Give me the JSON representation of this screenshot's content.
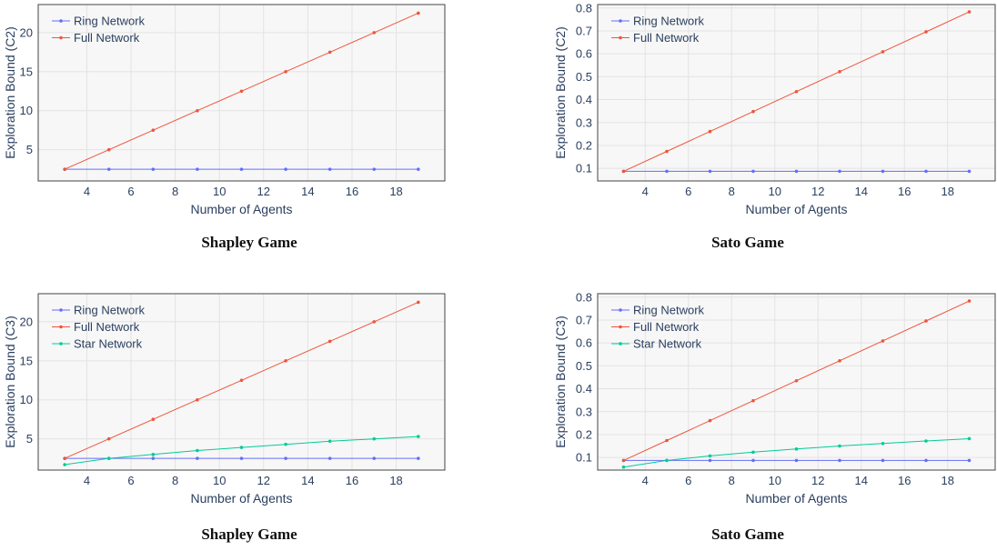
{
  "chart_data": [
    {
      "type": "line",
      "title": "Shapley Game",
      "xlabel": "Number of Agents",
      "ylabel": "Exploration Bound (C2)",
      "x": [
        3,
        5,
        7,
        9,
        11,
        13,
        15,
        17,
        19
      ],
      "xlim": [
        1.8,
        20.2
      ],
      "ylim": [
        1.0,
        23.6
      ],
      "xticks": [
        4,
        6,
        8,
        10,
        12,
        14,
        16,
        18
      ],
      "yticks": [
        5,
        10,
        15,
        20
      ],
      "grid": true,
      "legend_position": "top-left",
      "series": [
        {
          "name": "Ring Network",
          "color": "#636efa",
          "values": [
            2.5,
            2.5,
            2.5,
            2.5,
            2.5,
            2.5,
            2.5,
            2.5,
            2.5
          ]
        },
        {
          "name": "Full Network",
          "color": "#ef553b",
          "values": [
            2.5,
            5.0,
            7.5,
            10.0,
            12.5,
            15.0,
            17.5,
            20.0,
            22.5
          ]
        }
      ]
    },
    {
      "type": "line",
      "title": "Sato Game",
      "xlabel": "Number of Agents",
      "ylabel": "Exploration Bound (C2)",
      "x": [
        3,
        5,
        7,
        9,
        11,
        13,
        15,
        17,
        19
      ],
      "xlim": [
        1.8,
        20.2
      ],
      "ylim": [
        0.045,
        0.815
      ],
      "xticks": [
        4,
        6,
        8,
        10,
        12,
        14,
        16,
        18
      ],
      "yticks": [
        0.1,
        0.2,
        0.3,
        0.4,
        0.5,
        0.6,
        0.7,
        0.8
      ],
      "grid": true,
      "legend_position": "top-left",
      "series": [
        {
          "name": "Ring Network",
          "color": "#636efa",
          "values": [
            0.087,
            0.087,
            0.087,
            0.087,
            0.087,
            0.087,
            0.087,
            0.087,
            0.087
          ]
        },
        {
          "name": "Full Network",
          "color": "#ef553b",
          "values": [
            0.087,
            0.174,
            0.261,
            0.348,
            0.435,
            0.522,
            0.609,
            0.696,
            0.783
          ]
        }
      ]
    },
    {
      "type": "line",
      "title": "Shapley Game",
      "xlabel": "Number of Agents",
      "ylabel": "Exploration Bound (C3)",
      "x": [
        3,
        5,
        7,
        9,
        11,
        13,
        15,
        17,
        19
      ],
      "xlim": [
        1.8,
        20.2
      ],
      "ylim": [
        1.0,
        23.6
      ],
      "xticks": [
        4,
        6,
        8,
        10,
        12,
        14,
        16,
        18
      ],
      "yticks": [
        5,
        10,
        15,
        20
      ],
      "grid": true,
      "legend_position": "top-left",
      "series": [
        {
          "name": "Ring Network",
          "color": "#636efa",
          "values": [
            2.5,
            2.5,
            2.5,
            2.5,
            2.5,
            2.5,
            2.5,
            2.5,
            2.5
          ]
        },
        {
          "name": "Full Network",
          "color": "#ef553b",
          "values": [
            2.5,
            5.0,
            7.5,
            10.0,
            12.5,
            15.0,
            17.5,
            20.0,
            22.5
          ]
        },
        {
          "name": "Star Network",
          "color": "#00cc96",
          "values": [
            1.7,
            2.5,
            3.0,
            3.5,
            3.9,
            4.3,
            4.7,
            5.0,
            5.3
          ]
        }
      ]
    },
    {
      "type": "line",
      "title": "Sato Game",
      "xlabel": "Number of Agents",
      "ylabel": "Exploration Bound (C3)",
      "x": [
        3,
        5,
        7,
        9,
        11,
        13,
        15,
        17,
        19
      ],
      "xlim": [
        1.8,
        20.2
      ],
      "ylim": [
        0.045,
        0.815
      ],
      "xticks": [
        4,
        6,
        8,
        10,
        12,
        14,
        16,
        18
      ],
      "yticks": [
        0.1,
        0.2,
        0.3,
        0.4,
        0.5,
        0.6,
        0.7,
        0.8
      ],
      "grid": true,
      "legend_position": "top-left",
      "series": [
        {
          "name": "Ring Network",
          "color": "#636efa",
          "values": [
            0.087,
            0.087,
            0.087,
            0.087,
            0.087,
            0.087,
            0.087,
            0.087,
            0.087
          ]
        },
        {
          "name": "Full Network",
          "color": "#ef553b",
          "values": [
            0.087,
            0.174,
            0.261,
            0.348,
            0.435,
            0.522,
            0.609,
            0.696,
            0.783
          ]
        },
        {
          "name": "Star Network",
          "color": "#00cc96",
          "values": [
            0.058,
            0.087,
            0.107,
            0.123,
            0.137,
            0.15,
            0.161,
            0.172,
            0.182
          ]
        }
      ]
    }
  ]
}
